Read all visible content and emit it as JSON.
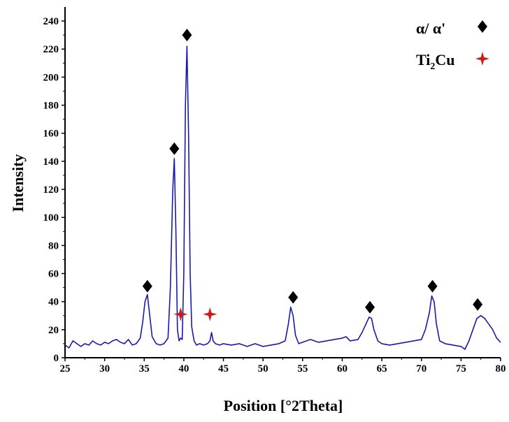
{
  "chart_data": {
    "type": "line",
    "title": "",
    "xlabel": "Position [°2Theta]",
    "ylabel": "Intensity",
    "xlim": [
      25,
      80
    ],
    "ylim": [
      0,
      250
    ],
    "x_ticks": [
      25,
      30,
      35,
      40,
      45,
      50,
      55,
      60,
      65,
      70,
      75,
      80
    ],
    "y_ticks": [
      0,
      20,
      40,
      60,
      80,
      100,
      120,
      140,
      160,
      180,
      200,
      220,
      240
    ],
    "grid": false,
    "legend_position": "top-right",
    "series": [
      {
        "color": "#1a1aa8",
        "x": [
          25,
          25.5,
          26,
          26.5,
          27,
          27.5,
          28,
          28.5,
          29,
          29.5,
          30,
          30.5,
          31,
          31.5,
          32,
          32.5,
          33,
          33.5,
          34,
          34.5,
          34.8,
          35.1,
          35.4,
          35.7,
          36,
          36.5,
          37,
          37.5,
          38,
          38.3,
          38.6,
          38.8,
          39,
          39.2,
          39.4,
          39.6,
          39.8,
          40,
          40.2,
          40.4,
          40.6,
          40.8,
          41,
          41.3,
          41.6,
          42,
          42.5,
          43,
          43.3,
          43.5,
          43.7,
          44,
          44.5,
          45,
          46,
          47,
          48,
          49,
          50,
          51,
          52,
          52.8,
          53.2,
          53.5,
          53.8,
          54.1,
          54.5,
          55,
          56,
          57,
          58,
          59,
          60,
          60.5,
          61,
          62,
          62.5,
          63,
          63.4,
          63.7,
          64,
          64.5,
          65,
          66,
          67,
          68,
          69,
          70,
          70.5,
          71,
          71.3,
          71.6,
          71.9,
          72.3,
          73,
          74,
          75,
          75.5,
          76,
          76.5,
          77,
          77.5,
          78,
          78.5,
          79,
          79.5,
          80
        ],
        "y": [
          9,
          7,
          12,
          10,
          8,
          10,
          9,
          12,
          10,
          9,
          11,
          10,
          12,
          13,
          11,
          10,
          13,
          9,
          10,
          14,
          25,
          40,
          45,
          30,
          15,
          10,
          9,
          10,
          14,
          50,
          120,
          142,
          90,
          20,
          12,
          14,
          13,
          60,
          180,
          222,
          160,
          60,
          22,
          12,
          9,
          10,
          9,
          10,
          12,
          18,
          12,
          10,
          9,
          10,
          9,
          10,
          8,
          10,
          8,
          9,
          10,
          12,
          24,
          36,
          30,
          16,
          10,
          11,
          13,
          11,
          12,
          13,
          14,
          15,
          12,
          13,
          18,
          24,
          29,
          28,
          20,
          12,
          10,
          9,
          10,
          11,
          12,
          13,
          20,
          32,
          44,
          40,
          24,
          12,
          10,
          9,
          8,
          6,
          12,
          20,
          28,
          30,
          28,
          24,
          20,
          14,
          11
        ]
      }
    ],
    "markers": [
      {
        "series": "α/ α'",
        "x": 35.4,
        "y": 51
      },
      {
        "series": "α/ α'",
        "x": 38.8,
        "y": 149
      },
      {
        "series": "α/ α'",
        "x": 40.4,
        "y": 230
      },
      {
        "series": "α/ α'",
        "x": 53.8,
        "y": 43
      },
      {
        "series": "α/ α'",
        "x": 63.5,
        "y": 36
      },
      {
        "series": "α/ α'",
        "x": 71.4,
        "y": 51
      },
      {
        "series": "α/ α'",
        "x": 77.1,
        "y": 38
      },
      {
        "series": "Ti₂Cu",
        "x": 39.6,
        "y": 31
      },
      {
        "series": "Ti₂Cu",
        "x": 43.3,
        "y": 31
      }
    ],
    "legend": [
      {
        "label": "α/ α'",
        "marker": "diamond",
        "color": "#000000"
      },
      {
        "label_base": "Ti",
        "label_sub": "2",
        "label_rest": "Cu",
        "marker": "star",
        "color": "#d01a1a"
      }
    ]
  }
}
